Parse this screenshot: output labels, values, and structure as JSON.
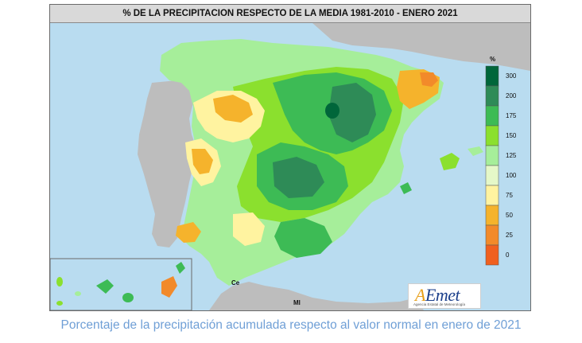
{
  "title": "% DE LA PRECIPITACION RESPECTO DE LA MEDIA 1981-2010 - ENERO 2021",
  "legend": {
    "unit": "%",
    "items": [
      {
        "label": "300",
        "color": "#00663a"
      },
      {
        "label": "200",
        "color": "#2e8b57"
      },
      {
        "label": "175",
        "color": "#3dbb55"
      },
      {
        "label": "150",
        "color": "#8be02e"
      },
      {
        "label": "125",
        "color": "#a6ee9a"
      },
      {
        "label": "100",
        "color": "#e5f8c8"
      },
      {
        "label": "75",
        "color": "#fff3a0"
      },
      {
        "label": "50",
        "color": "#f5b32c"
      },
      {
        "label": "25",
        "color": "#f28a2a"
      },
      {
        "label": "0",
        "color": "#f0601f"
      }
    ]
  },
  "cities": {
    "ceuta": "Ce",
    "melilla": "Ml"
  },
  "logo": {
    "main_a": "A",
    "main_rest": "Emet",
    "sub": "Agencia Estatal de Meteorología"
  },
  "caption": "Porcentaje de la precipitación acumulada respecto al valor normal en enero de 2021",
  "colors": {
    "sea": "#b9dcf0",
    "land_other": "#bdbdbd"
  }
}
